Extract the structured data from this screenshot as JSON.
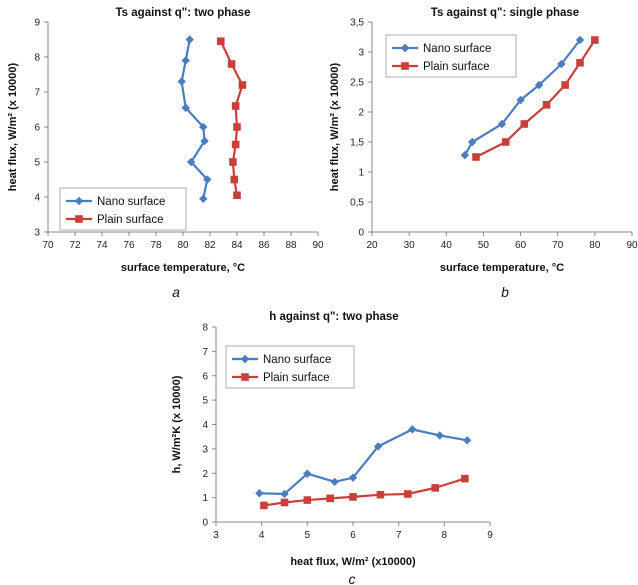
{
  "chart_data": [
    {
      "panel_label": "a",
      "type": "line",
      "title": "Ts against q\": two phase",
      "xlabel": "surface temperature, °C",
      "ylabel": "heat flux, W/m² (x 10000)",
      "xlim": [
        70,
        90
      ],
      "ylim": [
        3,
        9
      ],
      "x_ticks": [
        "70",
        "72",
        "74",
        "76",
        "78",
        "80",
        "82",
        "84",
        "86",
        "88",
        "90"
      ],
      "y_ticks": [
        "3",
        "4",
        "5",
        "6",
        "7",
        "8",
        "9"
      ],
      "legend_position": "bottom-left",
      "grid": false,
      "series": [
        {
          "name": "Nano surface",
          "color": "#4a7ebf",
          "marker": "diamond",
          "x": [
            80.5,
            80.2,
            79.9,
            80.2,
            81.5,
            81.6,
            80.6,
            81.8,
            81.5
          ],
          "y": [
            8.5,
            7.9,
            7.3,
            6.55,
            6.0,
            5.6,
            5.0,
            4.5,
            3.95
          ]
        },
        {
          "name": "Plain surface",
          "color": "#c8403c",
          "marker": "square",
          "x": [
            82.8,
            83.6,
            84.4,
            83.9,
            84.0,
            83.9,
            83.7,
            83.8,
            84.0
          ],
          "y": [
            8.45,
            7.8,
            7.2,
            6.6,
            6.0,
            5.5,
            5.0,
            4.5,
            4.05
          ]
        }
      ]
    },
    {
      "panel_label": "b",
      "type": "line",
      "title": "Ts against q\": single phase",
      "xlabel": "surface temperature, °C",
      "ylabel": "heat flux, W/m² (x 10000)",
      "xlim": [
        20,
        90
      ],
      "ylim": [
        0,
        3.5
      ],
      "x_ticks": [
        "20",
        "30",
        "40",
        "50",
        "60",
        "70",
        "80",
        "90"
      ],
      "y_ticks": [
        "0",
        "0,5",
        "1",
        "1,5",
        "2",
        "2,5",
        "3",
        "3,5"
      ],
      "legend_position": "top-left",
      "grid": false,
      "series": [
        {
          "name": "Nano surface",
          "color": "#4a7ebf",
          "marker": "diamond",
          "x": [
            45,
            47,
            55,
            60,
            65,
            71,
            76
          ],
          "y": [
            1.28,
            1.5,
            1.8,
            2.2,
            2.45,
            2.8,
            3.2
          ]
        },
        {
          "name": "Plain surface",
          "color": "#c8403c",
          "marker": "square",
          "x": [
            48,
            56,
            61,
            67,
            72,
            76,
            80
          ],
          "y": [
            1.25,
            1.5,
            1.8,
            2.12,
            2.45,
            2.82,
            3.2
          ]
        }
      ]
    },
    {
      "panel_label": "c",
      "type": "line",
      "title": "h against q\": two phase",
      "xlabel": "heat flux, W/m² (x10000)",
      "ylabel": "h, W/m²K (x 10000)",
      "xlim": [
        3,
        9
      ],
      "ylim": [
        0,
        8
      ],
      "x_ticks": [
        "3",
        "4",
        "5",
        "6",
        "7",
        "8",
        "9"
      ],
      "y_ticks": [
        "0",
        "1",
        "2",
        "3",
        "4",
        "5",
        "6",
        "7",
        "8"
      ],
      "legend_position": "top-left",
      "grid": false,
      "series": [
        {
          "name": "Nano surface",
          "color": "#4a7ebf",
          "marker": "diamond",
          "x": [
            3.95,
            4.5,
            5.0,
            5.6,
            6.0,
            6.55,
            7.3,
            7.9,
            8.5
          ],
          "y": [
            1.18,
            1.15,
            1.98,
            1.65,
            1.82,
            3.1,
            3.8,
            3.55,
            3.35
          ]
        },
        {
          "name": "Plain surface",
          "color": "#c8403c",
          "marker": "square",
          "x": [
            4.05,
            4.5,
            5.0,
            5.5,
            6.0,
            6.6,
            7.2,
            7.8,
            8.45
          ],
          "y": [
            0.68,
            0.8,
            0.9,
            0.97,
            1.03,
            1.12,
            1.15,
            1.4,
            1.78
          ]
        }
      ]
    }
  ]
}
